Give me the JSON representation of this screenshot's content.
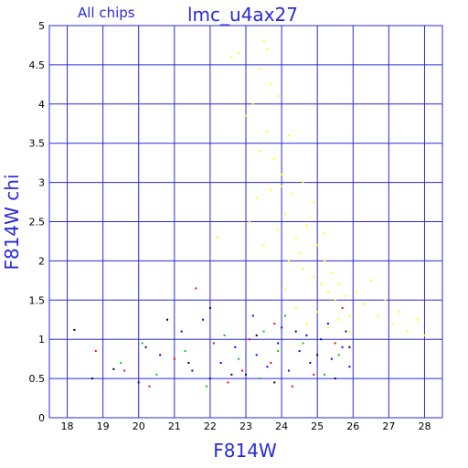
{
  "chart_data": {
    "type": "scatter",
    "title": "lmc_u4ax27",
    "subtitle": "All chips",
    "xlabel": "F814W",
    "ylabel": "F814W chi",
    "xlim": [
      17.5,
      28.5
    ],
    "ylim": [
      0,
      5
    ],
    "x_ticks": [
      18,
      19,
      20,
      21,
      22,
      23,
      24,
      25,
      26,
      27,
      28
    ],
    "y_ticks": [
      0,
      0.5,
      1,
      1.5,
      2,
      2.5,
      3,
      3.5,
      4,
      4.5,
      5
    ],
    "y_tick_labels": [
      "0",
      "0.5",
      "1",
      "1.5",
      "2",
      "2.5",
      "3",
      "3.5",
      "4",
      "4.5",
      "5"
    ],
    "grid": true,
    "series": [
      {
        "color": "#ffff00",
        "values": [
          [
            22.2,
            2.3
          ],
          [
            22.6,
            4.6
          ],
          [
            22.8,
            4.65
          ],
          [
            23.0,
            3.85
          ],
          [
            23.2,
            4.0
          ],
          [
            23.4,
            4.45
          ],
          [
            23.5,
            4.8
          ],
          [
            23.6,
            4.7
          ],
          [
            23.7,
            4.25
          ],
          [
            23.8,
            3.3
          ],
          [
            23.9,
            4.1
          ],
          [
            24.0,
            3.1
          ],
          [
            23.1,
            2.5
          ],
          [
            23.3,
            2.8
          ],
          [
            23.5,
            2.2
          ],
          [
            23.7,
            2.9
          ],
          [
            23.9,
            2.4
          ],
          [
            24.1,
            2.6
          ],
          [
            24.2,
            2.0
          ],
          [
            24.3,
            2.85
          ],
          [
            24.4,
            2.3
          ],
          [
            24.5,
            2.1
          ],
          [
            24.6,
            1.9
          ],
          [
            24.7,
            2.45
          ],
          [
            24.8,
            2.55
          ],
          [
            24.9,
            1.8
          ],
          [
            25.0,
            2.2
          ],
          [
            25.1,
            1.7
          ],
          [
            25.2,
            2.0
          ],
          [
            25.3,
            1.6
          ],
          [
            25.4,
            1.85
          ],
          [
            25.5,
            1.5
          ],
          [
            25.6,
            1.7
          ],
          [
            25.7,
            1.4
          ],
          [
            25.8,
            1.55
          ],
          [
            25.9,
            1.3
          ],
          [
            26.1,
            1.6
          ],
          [
            26.3,
            1.45
          ],
          [
            26.5,
            1.75
          ],
          [
            26.7,
            1.3
          ],
          [
            26.9,
            1.5
          ],
          [
            27.1,
            1.2
          ],
          [
            27.3,
            1.35
          ],
          [
            27.5,
            1.1
          ],
          [
            27.8,
            1.25
          ],
          [
            28.0,
            1.05
          ],
          [
            24.1,
            1.65
          ],
          [
            24.4,
            1.4
          ],
          [
            24.7,
            1.2
          ],
          [
            25.0,
            1.35
          ],
          [
            25.3,
            1.15
          ],
          [
            25.6,
            1.25
          ],
          [
            25.9,
            1.1
          ],
          [
            24.2,
            3.6
          ],
          [
            24.6,
            3.0
          ],
          [
            24.9,
            2.75
          ],
          [
            25.2,
            2.35
          ],
          [
            23.4,
            3.4
          ],
          [
            23.6,
            3.65
          ],
          [
            24.0,
            2.95
          ]
        ]
      },
      {
        "color": "#0000ff",
        "values": [
          [
            20.0,
            0.45
          ],
          [
            20.6,
            0.8
          ],
          [
            21.2,
            1.1
          ],
          [
            21.8,
            1.25
          ],
          [
            22.3,
            0.7
          ],
          [
            22.7,
            0.9
          ],
          [
            23.0,
            0.55
          ],
          [
            23.3,
            0.8
          ],
          [
            23.6,
            0.65
          ],
          [
            23.9,
            0.95
          ],
          [
            24.2,
            0.6
          ],
          [
            24.5,
            0.85
          ],
          [
            24.8,
            0.7
          ],
          [
            25.1,
            1.0
          ],
          [
            25.4,
            0.75
          ],
          [
            25.7,
            0.9
          ],
          [
            25.9,
            0.65
          ],
          [
            23.2,
            1.3
          ],
          [
            24.0,
            1.15
          ],
          [
            24.7,
            1.05
          ],
          [
            25.3,
            1.2
          ],
          [
            25.8,
            1.1
          ],
          [
            22.0,
            0.5
          ],
          [
            21.5,
            0.6
          ]
        ]
      },
      {
        "color": "#ff0000",
        "values": [
          [
            18.8,
            0.85
          ],
          [
            19.6,
            0.6
          ],
          [
            20.3,
            0.4
          ],
          [
            21.0,
            0.75
          ],
          [
            21.6,
            1.65
          ],
          [
            22.1,
            0.95
          ],
          [
            22.5,
            0.45
          ],
          [
            23.1,
            1.0
          ],
          [
            23.7,
            0.7
          ],
          [
            24.3,
            0.4
          ],
          [
            24.9,
            0.55
          ],
          [
            25.5,
            0.95
          ],
          [
            25.7,
            1.4
          ],
          [
            23.8,
            1.2
          ],
          [
            22.9,
            0.6
          ]
        ]
      },
      {
        "color": "#00cc00",
        "values": [
          [
            19.5,
            0.7
          ],
          [
            20.1,
            0.95
          ],
          [
            20.5,
            0.55
          ],
          [
            21.3,
            0.85
          ],
          [
            21.9,
            0.4
          ],
          [
            22.4,
            1.05
          ],
          [
            22.8,
            0.75
          ],
          [
            23.4,
            0.5
          ],
          [
            23.9,
            0.85
          ],
          [
            24.6,
            0.95
          ],
          [
            25.2,
            0.55
          ],
          [
            25.6,
            0.8
          ],
          [
            24.1,
            1.3
          ],
          [
            23.5,
            1.1
          ]
        ]
      },
      {
        "color": "#000000",
        "values": [
          [
            18.2,
            1.12
          ],
          [
            18.7,
            0.5
          ],
          [
            19.3,
            0.62
          ],
          [
            20.2,
            0.9
          ],
          [
            20.8,
            1.25
          ],
          [
            21.4,
            0.7
          ],
          [
            22.0,
            1.4
          ],
          [
            22.6,
            0.55
          ],
          [
            23.3,
            1.05
          ],
          [
            23.8,
            0.45
          ],
          [
            24.4,
            1.1
          ],
          [
            25.0,
            0.8
          ],
          [
            25.5,
            0.5
          ],
          [
            25.9,
            0.9
          ]
        ]
      }
    ]
  }
}
